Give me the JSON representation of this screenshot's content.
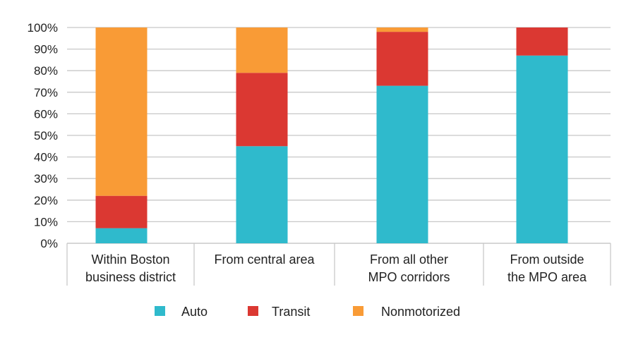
{
  "chart_data": {
    "type": "bar",
    "stacked": true,
    "categories": [
      [
        "Within Boston",
        "business district"
      ],
      [
        "From central area"
      ],
      [
        "From all other",
        "MPO corridors"
      ],
      [
        "From outside",
        "the MPO area"
      ]
    ],
    "series": [
      {
        "name": "Auto",
        "color": "#2fbacc",
        "values": [
          7,
          45,
          73,
          87
        ]
      },
      {
        "name": "Transit",
        "color": "#db3832",
        "values": [
          15,
          34,
          25,
          13
        ]
      },
      {
        "name": "Nonmotorized",
        "color": "#f99b36",
        "values": [
          78,
          21,
          2,
          0
        ]
      }
    ],
    "yticks": [
      "0%",
      "10%",
      "20%",
      "30%",
      "40%",
      "50%",
      "60%",
      "70%",
      "80%",
      "90%",
      "100%"
    ],
    "ylim": [
      0,
      100
    ],
    "grid": true,
    "legend": "bottom",
    "title": "",
    "xlabel": "",
    "ylabel": ""
  }
}
